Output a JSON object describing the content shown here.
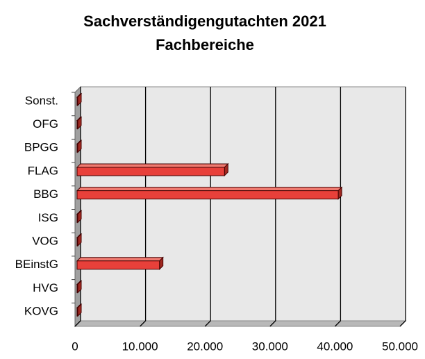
{
  "chart_data": {
    "type": "bar",
    "orientation": "horizontal",
    "three_d": true,
    "title": "Sachverständigengutachten 2021",
    "subtitle": "Fachbereiche",
    "categories": [
      "Sonst.",
      "OFG",
      "BPGG",
      "FLAG",
      "BBG",
      "ISG",
      "VOG",
      "BEinstG",
      "HVG",
      "KOVG"
    ],
    "values": [
      100,
      100,
      100,
      23000,
      40500,
      100,
      300,
      13000,
      100,
      100
    ],
    "color": "#e8403a",
    "xlim": [
      0,
      50000
    ],
    "xticks": [
      0,
      {
        "value": 10000,
        "label": "10.000"
      },
      {
        "value": 20000,
        "label": "20.000"
      },
      {
        "value": 30000,
        "label": "30.000"
      },
      {
        "value": 40000,
        "label": "40.000"
      },
      {
        "value": 50000,
        "label": "50.000"
      }
    ],
    "grid": true
  }
}
